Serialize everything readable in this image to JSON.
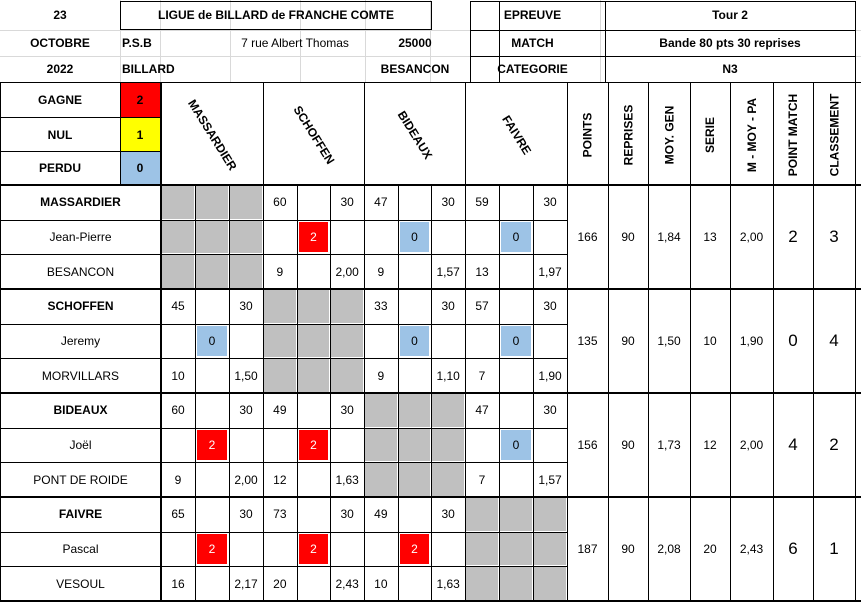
{
  "header": {
    "day": "23",
    "month": "OCTOBRE",
    "year": "2022",
    "league": "LIGUE de BILLARD de FRANCHE COMTE",
    "club_code": "P.S.B",
    "club_name": "BILLARD",
    "street": "7 rue Albert Thomas",
    "postcode": "25000",
    "city": "BESANCON",
    "epreuve_label": "EPREUVE",
    "epreuve_value": "Tour 2",
    "match_label": "MATCH",
    "match_value": "Bande 80 pts 30 reprises",
    "categorie_label": "CATEGORIE",
    "categorie_value": "N3"
  },
  "legend": {
    "gagne": {
      "label": "GAGNE",
      "value": "2",
      "color": "#ff0000"
    },
    "nul": {
      "label": "NUL",
      "value": "1",
      "color": "#ffff00"
    },
    "perdu": {
      "label": "PERDU",
      "value": "0",
      "color": "#9dc3e6"
    }
  },
  "columns": {
    "opponents": [
      "MASSARDIER",
      "SCHOFFEN",
      "BIDEAUX",
      "FAIVRE"
    ],
    "stats": [
      "POINTS",
      "REPRISES",
      "MOY. GEN",
      "SERIE",
      "M - MOY - PA",
      "POINT MATCH",
      "CLASSEMENT"
    ]
  },
  "players": [
    {
      "surname": "MASSARDIER",
      "firstname": "Jean-Pierre",
      "club": "BESANCON",
      "matches": [
        null,
        {
          "points": "60",
          "reprises": "30",
          "result": "2",
          "avg": "2,00"
        },
        {
          "points": "47",
          "reprises": "30",
          "result": "0",
          "avg": "1,57"
        },
        {
          "points": "59",
          "reprises": "30",
          "result": "0",
          "avg": "1,97"
        }
      ],
      "opp_points": [
        "",
        "9",
        "9",
        "13"
      ],
      "stats": {
        "points": "166",
        "reprises": "90",
        "moy_gen": "1,84",
        "serie": "13",
        "m_moy_pa": "2,00",
        "point_match": "2",
        "classement": "3"
      }
    },
    {
      "surname": "SCHOFFEN",
      "firstname": "Jeremy",
      "club": "MORVILLARS",
      "matches": [
        {
          "points": "45",
          "reprises": "30",
          "result": "0",
          "avg": "1,50"
        },
        null,
        {
          "points": "33",
          "reprises": "30",
          "result": "0",
          "avg": "1,10"
        },
        {
          "points": "57",
          "reprises": "30",
          "result": "0",
          "avg": "1,90"
        }
      ],
      "opp_points": [
        "10",
        "",
        "9",
        "7"
      ],
      "stats": {
        "points": "135",
        "reprises": "90",
        "moy_gen": "1,50",
        "serie": "10",
        "m_moy_pa": "1,90",
        "point_match": "0",
        "classement": "4"
      }
    },
    {
      "surname": "BIDEAUX",
      "firstname": "Joël",
      "club": "PONT DE ROIDE",
      "matches": [
        {
          "points": "60",
          "reprises": "30",
          "result": "2",
          "avg": "2,00"
        },
        {
          "points": "49",
          "reprises": "30",
          "result": "2",
          "avg": "1,63"
        },
        null,
        {
          "points": "47",
          "reprises": "30",
          "result": "0",
          "avg": "1,57"
        }
      ],
      "opp_points": [
        "9",
        "12",
        "",
        "7"
      ],
      "stats": {
        "points": "156",
        "reprises": "90",
        "moy_gen": "1,73",
        "serie": "12",
        "m_moy_pa": "2,00",
        "point_match": "4",
        "classement": "2"
      }
    },
    {
      "surname": "FAIVRE",
      "firstname": "Pascal",
      "club": "VESOUL",
      "matches": [
        {
          "points": "65",
          "reprises": "30",
          "result": "2",
          "avg": "2,17"
        },
        {
          "points": "73",
          "reprises": "30",
          "result": "2",
          "avg": "2,43"
        },
        {
          "points": "49",
          "reprises": "30",
          "result": "2",
          "avg": "1,63"
        },
        null
      ],
      "opp_points": [
        "16",
        "20",
        "10",
        ""
      ],
      "stats": {
        "points": "187",
        "reprises": "90",
        "moy_gen": "2,08",
        "serie": "20",
        "m_moy_pa": "2,43",
        "point_match": "6",
        "classement": "1"
      }
    }
  ]
}
